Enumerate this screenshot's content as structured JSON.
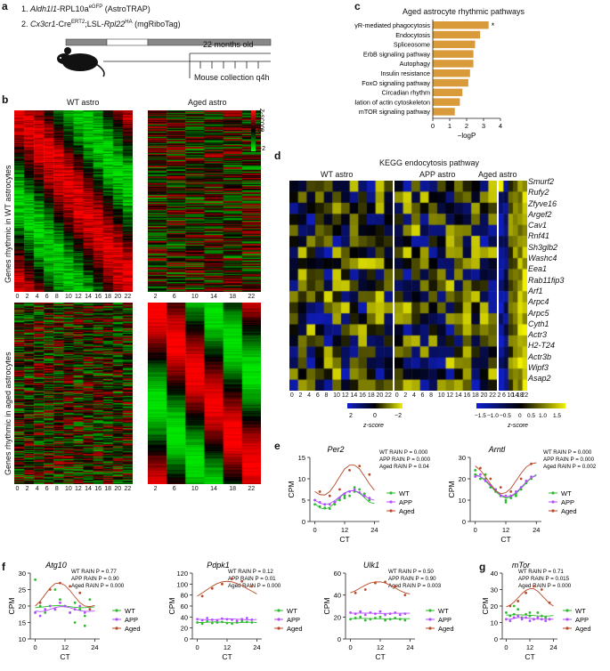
{
  "panel_letters": [
    "a",
    "b",
    "c",
    "d",
    "e",
    "f",
    "g"
  ],
  "panel_a": {
    "line1_prefix": "1. ",
    "line1_gene": "Aldh1l1",
    "line1_rest": "-RPL10a",
    "line1_sup": "eGFP",
    "line1_tail": " (AstroTRAP)",
    "line2_prefix": "2. ",
    "line2_gene": "Cx3cr1",
    "line2_rest": "-Cre",
    "line2_sup": "ERT2",
    "line2_mid": ";LSL-",
    "line2_gene2": "Rpl22",
    "line2_sup2": "HA",
    "line2_tail": " (mgRiboTag)",
    "age_label": "22 months old",
    "collection_label": "Mouse collection q4h"
  },
  "panel_b": {
    "wt_title": "WT astro",
    "aged_title": "Aged astro",
    "scale_title": "z-score",
    "scale_ticks": [
      "2",
      "0",
      "−2"
    ],
    "row_label_top": "Genes rhythmic in WT astrocytes",
    "row_label_bottom": "Genes rhythmic in aged astrocytes",
    "wt_ticks": [
      "0",
      "2",
      "4",
      "6",
      "8",
      "10",
      "12",
      "14",
      "16",
      "18",
      "20",
      "22"
    ],
    "aged_ticks": [
      "2",
      "6",
      "10",
      "14",
      "18",
      "22"
    ]
  },
  "panel_d": {
    "title": "KEGG endocytosis pathway",
    "col_titles": [
      "WT astro",
      "APP astro",
      "Aged astro"
    ],
    "genes": [
      "Smurf2",
      "Rufy2",
      "Zfyve16",
      "Argef2",
      "Cav1",
      "Rnf41",
      "Sh3glb2",
      "Washc4",
      "Eea1",
      "Rab11fip3",
      "Arf1",
      "Arpc4",
      "Arpc5",
      "Cyth1",
      "Actr3",
      "H2-T24",
      "Actr3b",
      "Wipf3",
      "Asap2"
    ],
    "wt_ticks": [
      "0",
      "2",
      "4",
      "6",
      "8",
      "10",
      "12",
      "14",
      "16",
      "18",
      "20",
      "22"
    ],
    "app_ticks": [
      "0",
      "2",
      "4",
      "6",
      "8",
      "10",
      "12",
      "14",
      "16",
      "18",
      "20",
      "22"
    ],
    "aged_ticks": [
      "2",
      "6",
      "10",
      "14",
      "18",
      "22"
    ],
    "scale1_ticks": [
      "2",
      "0",
      "−2"
    ],
    "scale2_ticks": [
      "−1.5",
      "−1.0",
      "−0.5",
      "0",
      "0.5",
      "1.0",
      "1.5"
    ],
    "scale_label": "z-score"
  },
  "chart_data": [
    {
      "id": "c",
      "type": "bar",
      "title": "Aged astrocyte rhythmic pathways",
      "orientation": "horizontal",
      "categories": [
        "FcγR-mediated phagocytosis",
        "Endocytosis",
        "Spliceosome",
        "ErbB signaling pathway",
        "Autophagy",
        "Insulin resistance",
        "FoxO signaling pathway",
        "Circadian rhythm",
        "Regulation of actin cytoskeleton",
        "mTOR signaling pathway"
      ],
      "values": [
        3.3,
        2.8,
        2.5,
        2.4,
        2.4,
        2.2,
        2.1,
        1.75,
        1.6,
        1.3
      ],
      "annotation": "*",
      "xlabel": "−logP",
      "xlim": [
        0,
        4
      ],
      "xticks": [
        "0",
        "1",
        "2",
        "3",
        "4"
      ],
      "color": "#d99a3a"
    },
    {
      "id": "e1",
      "type": "scatter",
      "gene": "Per2",
      "stats": [
        "WT RAIN P = 0.000",
        "APP RAIN P = 0.000",
        "Aged RAIN P = 0.04"
      ],
      "ylabel": "CPM",
      "xlabel": "CT",
      "xlim": [
        -2,
        26
      ],
      "ylim": [
        0,
        15
      ],
      "xticks": [
        "0",
        "12",
        "24"
      ],
      "yticks": [
        "0",
        "5",
        "10",
        "15"
      ],
      "legend": [
        "WT",
        "APP",
        "Aged"
      ],
      "series": [
        {
          "name": "WT",
          "color": "#2db92d",
          "x": [
            0,
            2,
            4,
            6,
            8,
            10,
            12,
            14,
            16,
            18,
            20,
            22,
            0,
            4,
            8,
            12,
            16,
            20
          ],
          "y": [
            4,
            3.5,
            3.2,
            3,
            4,
            5,
            5.5,
            6,
            7,
            7.5,
            6,
            5,
            5,
            4,
            4.5,
            6,
            8,
            6.5
          ],
          "fit": [
            4.2,
            3.2,
            2.9,
            3.3,
            4.4,
            5.6,
            6.6,
            7.2,
            7.2,
            6.6,
            5.6,
            4.5,
            4.2
          ]
        },
        {
          "name": "APP",
          "color": "#b54cff",
          "x": [
            0,
            2,
            4,
            6,
            8,
            10,
            12,
            14,
            16,
            18,
            20,
            22
          ],
          "y": [
            5,
            4.5,
            4,
            4,
            4.5,
            5.5,
            6.5,
            7,
            7.5,
            6.8,
            6,
            5.5
          ],
          "fit": [
            5,
            4.3,
            4,
            4.2,
            4.9,
            5.8,
            6.7,
            7.2,
            7.2,
            6.8,
            6,
            5.3,
            5
          ]
        },
        {
          "name": "Aged",
          "color": "#b84a2a",
          "x": [
            2,
            6,
            10,
            14,
            18,
            22
          ],
          "y": [
            7,
            6,
            7.5,
            12,
            13,
            11
          ],
          "fit": [
            7,
            6.3,
            6.2,
            7,
            8.6,
            10.5,
            12.3,
            13.2,
            13.2,
            12.3,
            10.6,
            8.8,
            7.3
          ]
        }
      ]
    },
    {
      "id": "e2",
      "type": "scatter",
      "gene": "Arntl",
      "stats": [
        "WT RAIN P = 0.000",
        "APP RAIN P = 0.000",
        "Aged RAIN P = 0.002"
      ],
      "ylabel": "CPM",
      "xlabel": "CT",
      "xlim": [
        -2,
        26
      ],
      "ylim": [
        0,
        30
      ],
      "xticks": [
        "0",
        "12",
        "24"
      ],
      "yticks": [
        "0",
        "10",
        "20",
        "30"
      ],
      "legend": [
        "WT",
        "APP",
        "Aged"
      ],
      "series": [
        {
          "name": "WT",
          "color": "#2db92d",
          "x": [
            0,
            2,
            4,
            6,
            8,
            10,
            12,
            14,
            16,
            18,
            20,
            22,
            0,
            4,
            8,
            12,
            16
          ],
          "y": [
            22,
            20,
            20,
            16,
            14,
            12,
            10,
            11,
            13,
            15,
            18,
            20,
            24,
            22,
            15,
            9,
            12
          ],
          "fit": [
            22,
            21,
            19,
            16.5,
            14,
            12,
            11,
            11.5,
            13,
            15.5,
            18,
            20.5,
            22
          ]
        },
        {
          "name": "APP",
          "color": "#b54cff",
          "x": [
            0,
            2,
            4,
            6,
            8,
            10,
            12,
            14,
            16,
            18,
            20,
            22
          ],
          "y": [
            21,
            22,
            19,
            17,
            15,
            12,
            12,
            12,
            14,
            16,
            19,
            21
          ],
          "fit": [
            21.5,
            21,
            19.5,
            17,
            14.5,
            12.5,
            11.5,
            12,
            13.5,
            16,
            18.5,
            20.5,
            21.5
          ]
        },
        {
          "name": "Aged",
          "color": "#b84a2a",
          "x": [
            2,
            6,
            10,
            14,
            18,
            22
          ],
          "y": [
            25,
            20,
            16,
            14,
            20,
            27
          ],
          "fit": [
            26,
            24,
            21,
            17.5,
            14.5,
            13,
            13.5,
            15.5,
            19,
            22.5,
            25.5,
            27,
            27.5
          ]
        }
      ]
    },
    {
      "id": "f1",
      "type": "scatter",
      "gene": "Atg10",
      "stats": [
        "WT RAIN P = 0.77",
        "APP RAIN P = 0.90",
        "Aged RAIN P = 0.000"
      ],
      "ylabel": "CPM",
      "xlabel": "CT",
      "xlim": [
        -2,
        26
      ],
      "ylim": [
        10,
        30
      ],
      "xticks": [
        "0",
        "12",
        "24"
      ],
      "yticks": [
        "10",
        "15",
        "20",
        "25",
        "30"
      ],
      "legend": [
        "WT",
        "APP",
        "Aged"
      ],
      "series": [
        {
          "name": "WT",
          "color": "#2db92d",
          "x": [
            0,
            2,
            4,
            6,
            8,
            10,
            12,
            14,
            16,
            18,
            20,
            22,
            0,
            8,
            16,
            20
          ],
          "y": [
            28,
            20,
            18,
            20,
            19,
            22,
            20,
            18,
            21,
            19,
            17,
            22,
            18,
            25,
            15,
            14
          ],
          "fit": [
            19.5,
            19.6,
            19.8,
            20,
            20.1,
            20.1,
            20,
            19.8,
            19.6,
            19.5,
            19.5,
            19.6,
            19.7
          ]
        },
        {
          "name": "APP",
          "color": "#b54cff",
          "x": [
            0,
            2,
            4,
            6,
            8,
            10,
            12,
            14,
            16,
            18,
            20,
            22
          ],
          "y": [
            18,
            17,
            19,
            20,
            19,
            21,
            20,
            18,
            19,
            20,
            18,
            19
          ],
          "fit": [
            18.5,
            18.3,
            18.5,
            19,
            19.5,
            19.8,
            19.8,
            19.5,
            19,
            18.6,
            18.4,
            18.4,
            18.5
          ]
        },
        {
          "name": "Aged",
          "color": "#b84a2a",
          "x": [
            2,
            6,
            10,
            14,
            18,
            22
          ],
          "y": [
            21,
            25,
            27,
            26,
            24,
            19
          ],
          "fit": [
            20,
            21.5,
            23.5,
            25.5,
            26.8,
            27,
            26.3,
            24.7,
            22.8,
            21,
            20,
            19.8,
            20.2
          ]
        }
      ]
    },
    {
      "id": "f2",
      "type": "scatter",
      "gene": "Pdpk1",
      "stats": [
        "WT RAIN P = 0.12",
        "APP RAIN P = 0.01",
        "Aged RAIN P = 0.000"
      ],
      "ylabel": "CPM",
      "xlabel": "CT",
      "xlim": [
        -2,
        26
      ],
      "ylim": [
        0,
        120
      ],
      "xticks": [
        "0",
        "12",
        "24"
      ],
      "yticks": [
        "0",
        "20",
        "40",
        "60",
        "80",
        "100",
        "120"
      ],
      "legend": [
        "WT",
        "APP",
        "Aged"
      ],
      "series": [
        {
          "name": "WT",
          "color": "#2db92d",
          "x": [
            0,
            2,
            4,
            6,
            8,
            10,
            12,
            14,
            16,
            18,
            20,
            22
          ],
          "y": [
            30,
            28,
            32,
            29,
            30,
            31,
            29,
            28,
            30,
            33,
            31,
            30
          ],
          "fit": [
            30,
            30,
            30.5,
            31,
            31,
            30.5,
            30,
            29.5,
            29.5,
            30,
            30.5,
            30.5,
            30
          ]
        },
        {
          "name": "APP",
          "color": "#b54cff",
          "x": [
            0,
            2,
            4,
            6,
            8,
            10,
            12,
            14,
            16,
            18,
            20,
            22
          ],
          "y": [
            36,
            34,
            38,
            35,
            34,
            37,
            36,
            35,
            33,
            36,
            38,
            35
          ],
          "fit": [
            36,
            35.5,
            35,
            35,
            35.5,
            36,
            36.5,
            36.5,
            36,
            35.5,
            35,
            35,
            35.5
          ]
        },
        {
          "name": "Aged",
          "color": "#b84a2a",
          "x": [
            2,
            6,
            10,
            14,
            18,
            22
          ],
          "y": [
            78,
            92,
            100,
            110,
            105,
            96
          ],
          "fit": [
            78,
            84,
            90,
            96,
            101,
            104,
            105,
            104,
            101,
            97,
            92,
            87,
            82
          ]
        }
      ]
    },
    {
      "id": "f3",
      "type": "scatter",
      "gene": "Ulk1",
      "stats": [
        "WT RAIN P = 0.50",
        "APP RAIN P = 0.90",
        "Aged RAIN P = 0.003"
      ],
      "ylabel": "CPM",
      "xlabel": "CT",
      "xlim": [
        -2,
        26
      ],
      "ylim": [
        0,
        60
      ],
      "xticks": [
        "0",
        "12",
        "24"
      ],
      "yticks": [
        "0",
        "20",
        "40",
        "60"
      ],
      "legend": [
        "WT",
        "APP",
        "Aged"
      ],
      "series": [
        {
          "name": "WT",
          "color": "#2db92d",
          "x": [
            0,
            2,
            4,
            6,
            8,
            10,
            12,
            14,
            16,
            18,
            20,
            22
          ],
          "y": [
            18,
            19,
            20,
            17,
            18,
            19,
            20,
            17,
            18,
            19,
            18,
            17
          ],
          "fit": [
            18.5,
            18.6,
            18.7,
            18.7,
            18.6,
            18.5,
            18.4,
            18.3,
            18.3,
            18.3,
            18.4,
            18.5,
            18.5
          ]
        },
        {
          "name": "APP",
          "color": "#b54cff",
          "x": [
            0,
            2,
            4,
            6,
            8,
            10,
            12,
            14,
            16,
            18,
            20,
            22
          ],
          "y": [
            24,
            23,
            25,
            22,
            24,
            23,
            25,
            22,
            23,
            24,
            22,
            23
          ],
          "fit": [
            23.5,
            23.5,
            23.6,
            23.6,
            23.5,
            23.4,
            23.3,
            23.3,
            23.4,
            23.4,
            23.5,
            23.5,
            23.5
          ]
        },
        {
          "name": "Aged",
          "color": "#b84a2a",
          "x": [
            2,
            6,
            10,
            14,
            18,
            22
          ],
          "y": [
            42,
            45,
            51,
            52,
            48,
            40
          ],
          "fit": [
            42,
            44,
            46.5,
            49,
            51,
            52,
            52,
            51,
            49,
            46.5,
            44,
            42,
            41
          ]
        }
      ]
    },
    {
      "id": "g",
      "type": "scatter",
      "gene": "mTor",
      "stats": [
        "WT RAIN P = 0.71",
        "APP RAIN P = 0.015",
        "Aged RAIN P = 0.000"
      ],
      "ylabel": "CPM",
      "xlabel": "CT",
      "xlim": [
        -2,
        26
      ],
      "ylim": [
        0,
        40
      ],
      "xticks": [
        "0",
        "12",
        "24"
      ],
      "yticks": [
        "0",
        "10",
        "20",
        "30",
        "40"
      ],
      "legend": [
        "WT",
        "APP",
        "Aged"
      ],
      "series": [
        {
          "name": "WT",
          "color": "#2db92d",
          "x": [
            0,
            2,
            4,
            6,
            8,
            10,
            12,
            14,
            16,
            18,
            20,
            22,
            4,
            12
          ],
          "y": [
            16,
            14,
            15,
            18,
            13,
            15,
            14,
            12,
            16,
            14,
            13,
            12,
            20,
            16
          ],
          "fit": [
            14.5,
            14.6,
            14.7,
            14.7,
            14.6,
            14.5,
            14.4,
            14.2,
            14,
            13.9,
            13.9,
            14,
            14.2
          ]
        },
        {
          "name": "APP",
          "color": "#b54cff",
          "x": [
            0,
            2,
            4,
            6,
            8,
            10,
            12,
            14,
            16,
            18,
            20,
            22
          ],
          "y": [
            12,
            11,
            13,
            14,
            12,
            13,
            11,
            12,
            13,
            12,
            11,
            12
          ],
          "fit": [
            12,
            12,
            12.5,
            13,
            13,
            12.8,
            12.5,
            12.2,
            12,
            12,
            12,
            12,
            12
          ]
        },
        {
          "name": "Aged",
          "color": "#b84a2a",
          "x": [
            2,
            6,
            10,
            14,
            18,
            22
          ],
          "y": [
            20,
            23,
            28,
            32,
            30,
            22
          ],
          "fit": [
            19.5,
            20.5,
            22.5,
            25,
            27.5,
            29.5,
            30.5,
            30.5,
            29,
            26.5,
            24,
            21.5,
            20
          ]
        }
      ]
    }
  ]
}
